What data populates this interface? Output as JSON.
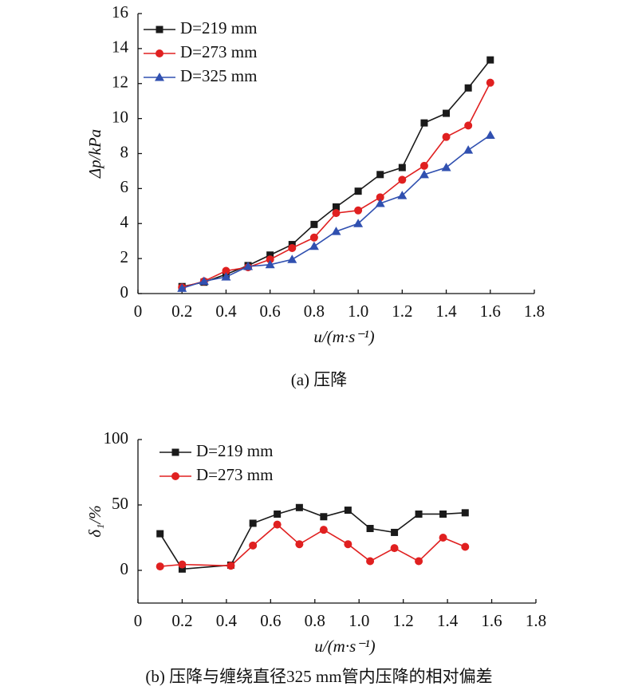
{
  "chart_data": [
    {
      "type": "line",
      "caption": "(a) 压降",
      "x_label": "u/(m·s⁻¹)",
      "y_label": "Δp/kPa",
      "xlim": [
        0,
        1.8
      ],
      "xticks": [
        0,
        0.2,
        0.4,
        0.6,
        0.8,
        {
          "value": 1,
          "label": "1.0"
        },
        1.2,
        1.4,
        1.6,
        1.8
      ],
      "ylim": [
        0,
        16
      ],
      "yticks": [
        0,
        2,
        4,
        6,
        8,
        10,
        12,
        14,
        16
      ],
      "x": [
        0.2,
        0.3,
        0.4,
        0.5,
        0.6,
        0.7,
        0.8,
        0.9,
        1.0,
        1.1,
        1.2,
        1.3,
        1.4,
        1.5,
        1.6
      ],
      "series": [
        {
          "name": "D=219 mm",
          "color": "#1a1a1a",
          "marker": "square",
          "values": [
            0.4,
            0.65,
            1.1,
            1.6,
            2.2,
            2.8,
            3.95,
            4.95,
            5.85,
            6.8,
            7.2,
            9.75,
            10.3,
            11.75,
            13.35
          ]
        },
        {
          "name": "D=273 mm",
          "color": "#e02020",
          "marker": "circle",
          "values": [
            0.35,
            0.7,
            1.3,
            1.5,
            1.95,
            2.6,
            3.2,
            4.6,
            4.75,
            5.5,
            6.5,
            7.3,
            8.95,
            9.6,
            12.05
          ]
        },
        {
          "name": "D=325 mm",
          "color": "#3050b0",
          "marker": "triangle",
          "values": [
            0.3,
            0.7,
            0.95,
            1.55,
            1.65,
            1.95,
            2.7,
            3.55,
            4.0,
            5.15,
            5.6,
            6.8,
            7.2,
            8.2,
            9.05
          ]
        }
      ]
    },
    {
      "type": "line",
      "caption": "(b) 压降与缠绕直径325 mm管内压降的相对偏差",
      "x_label": "u/(m·s⁻¹)",
      "y_label": "δ₁/%",
      "xlim": [
        0,
        1.8
      ],
      "xticks": [
        0,
        0.2,
        0.4,
        0.6,
        0.8,
        {
          "value": 1,
          "label": "1.0"
        },
        1.2,
        1.4,
        1.6,
        1.8
      ],
      "ylim": [
        -25,
        100
      ],
      "yticks": [
        0,
        50,
        100
      ],
      "x": [
        0.1,
        0.2,
        0.42,
        0.52,
        0.63,
        0.73,
        0.84,
        0.95,
        1.05,
        1.16,
        1.27,
        1.38,
        1.48
      ],
      "series": [
        {
          "name": "D=219 mm",
          "color": "#1a1a1a",
          "marker": "square",
          "values": [
            28,
            1,
            4,
            36,
            43,
            48,
            41,
            46,
            32,
            29,
            43,
            43,
            44
          ]
        },
        {
          "name": "D=273 mm",
          "color": "#e02020",
          "marker": "circle",
          "values": [
            3,
            4.5,
            3.5,
            19,
            35,
            20,
            31,
            20,
            7,
            17,
            7,
            25,
            18
          ]
        }
      ]
    }
  ]
}
